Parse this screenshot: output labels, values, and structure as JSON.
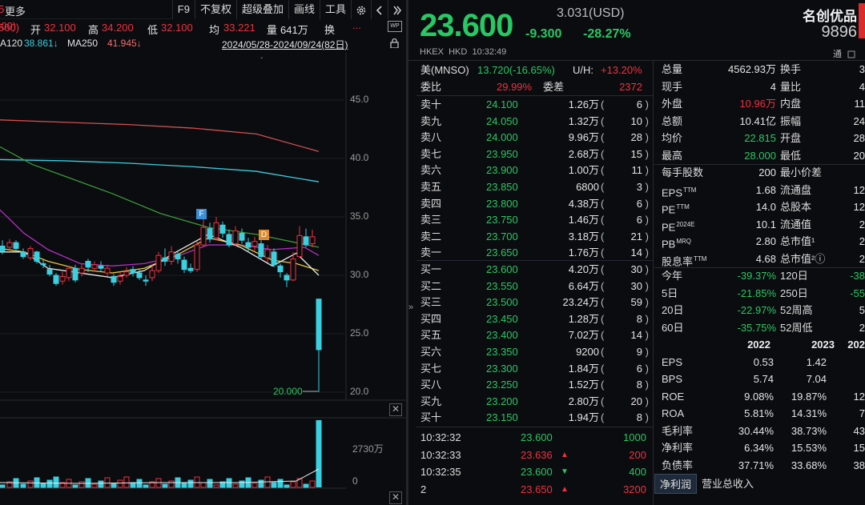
{
  "toolbar": {
    "more": "更多",
    "prev_close_fragment": "500)",
    "open_label": "开",
    "open_value": "32.100",
    "high_label": "高",
    "high_value": "34.200",
    "low_label": "低",
    "low_value": "32.100",
    "avg_label": "均",
    "avg_value": "33.221",
    "vol_label": "量",
    "vol_value": "641万",
    "turn_label": "换",
    "buttons": [
      "F9",
      "不复权",
      "超级叠加",
      "画线",
      "工具"
    ],
    "gear": "gear-icon",
    "collapse": "chevrons-right-icon",
    "ellipsis": "..."
  },
  "ma_bar": {
    "ma120_label": "A120",
    "ma120_value": "38.861↓",
    "ma250_label": "MA250",
    "ma250_value": "41.945↓",
    "range": "2024/05/28-2024/09/24(82日)"
  },
  "price_axis": [
    "45.0",
    "40.0",
    "35.0",
    "30.0",
    "25.0",
    "20.0"
  ],
  "min_price_label": "20.000",
  "vol_axis": [
    "2730万",
    "0"
  ],
  "markers": {
    "f": "F",
    "d": "D"
  },
  "quote": {
    "price": "23.600",
    "usd_price": "3.031(USD)",
    "change": "-9.300",
    "change_pct": "-28.27%",
    "name": "名创优品",
    "code": "9896",
    "market": "HKEX",
    "currency": "HKD",
    "time": "10:32:49",
    "tong": "通"
  },
  "adr": {
    "label": "美(MNSO)",
    "value": "13.720(-16.65%)",
    "uh_label": "U/H:",
    "uh_value": "+13.20%"
  },
  "weibi": {
    "label": "委比",
    "value": "29.99%",
    "weicha_label": "委差",
    "weicha_value": "2372"
  },
  "asks": [
    {
      "label": "卖十",
      "price": "24.100",
      "vol": "1.26万",
      "count": "6"
    },
    {
      "label": "卖九",
      "price": "24.050",
      "vol": "1.32万",
      "count": "10"
    },
    {
      "label": "卖八",
      "price": "24.000",
      "vol": "9.96万",
      "count": "28"
    },
    {
      "label": "卖七",
      "price": "23.950",
      "vol": "2.68万",
      "count": "15"
    },
    {
      "label": "卖六",
      "price": "23.900",
      "vol": "1.00万",
      "count": "11"
    },
    {
      "label": "卖五",
      "price": "23.850",
      "vol": "6800",
      "count": "3"
    },
    {
      "label": "卖四",
      "price": "23.800",
      "vol": "4.38万",
      "count": "6"
    },
    {
      "label": "卖三",
      "price": "23.750",
      "vol": "1.46万",
      "count": "6"
    },
    {
      "label": "卖二",
      "price": "23.700",
      "vol": "3.18万",
      "count": "21"
    },
    {
      "label": "卖一",
      "price": "23.650",
      "vol": "1.76万",
      "count": "14"
    }
  ],
  "bids": [
    {
      "label": "买一",
      "price": "23.600",
      "vol": "4.20万",
      "count": "30"
    },
    {
      "label": "买二",
      "price": "23.550",
      "vol": "6.64万",
      "count": "30"
    },
    {
      "label": "买三",
      "price": "23.500",
      "vol": "23.24万",
      "count": "59"
    },
    {
      "label": "买四",
      "price": "23.450",
      "vol": "1.28万",
      "count": "8"
    },
    {
      "label": "买五",
      "price": "23.400",
      "vol": "7.02万",
      "count": "14"
    },
    {
      "label": "买六",
      "price": "23.350",
      "vol": "9200",
      "count": "9"
    },
    {
      "label": "买七",
      "price": "23.300",
      "vol": "1.84万",
      "count": "6"
    },
    {
      "label": "买八",
      "price": "23.250",
      "vol": "1.52万",
      "count": "8"
    },
    {
      "label": "买九",
      "price": "23.200",
      "vol": "2.80万",
      "count": "20"
    },
    {
      "label": "买十",
      "price": "23.150",
      "vol": "1.94万",
      "count": "8"
    }
  ],
  "ticks": [
    {
      "time": "10:32:32",
      "price": "23.600",
      "arrow": "",
      "vol": "1000",
      "color": "#28c864"
    },
    {
      "time": "10:32:33",
      "price": "23.636",
      "arrow": "up",
      "vol": "200",
      "color": "#f0313f"
    },
    {
      "time": "10:32:35",
      "price": "23.600",
      "arrow": "down",
      "vol": "400",
      "color": "#28c864"
    },
    {
      "time": "2",
      "price": "23.650",
      "arrow": "up",
      "vol": "3200",
      "color": "#f0313f"
    }
  ],
  "stats": [
    {
      "l1": "总量",
      "v1": "4562.93万",
      "c1": "#e4e4e4",
      "l2": "换手",
      "v2": "3"
    },
    {
      "l1": "现手",
      "v1": "4",
      "c1": "#e4e4e4",
      "l2": "量比",
      "v2": "4"
    },
    {
      "l1": "外盘",
      "v1": "10.96万",
      "c1": "#f0313f",
      "l2": "内盘",
      "v2": "11"
    },
    {
      "l1": "总额",
      "v1": "10.41亿",
      "c1": "#e4e4e4",
      "l2": "振幅",
      "v2": "24"
    },
    {
      "l1": "均价",
      "v1": "22.815",
      "c1": "#28c864",
      "l2": "开盘",
      "v2": "28"
    },
    {
      "l1": "最高",
      "v1": "28.000",
      "c1": "#28c864",
      "l2": "最低",
      "v2": "20"
    },
    {
      "l1": "每手股数",
      "v1": "200",
      "c1": "#e4e4e4",
      "l2": "最小价差",
      "v2": ""
    },
    {
      "l1": "EPS",
      "sup1": "TTM",
      "v1": "1.68",
      "c1": "#e4e4e4",
      "l2": "流通盘",
      "v2": "12"
    },
    {
      "l1": "PE",
      "sup1": "TTM",
      "v1": "14.0",
      "c1": "#e4e4e4",
      "l2": "总股本",
      "v2": "12"
    },
    {
      "l1": "PE",
      "sup1": "2024E",
      "v1": "10.1",
      "c1": "#e4e4e4",
      "l2": "流通值",
      "v2": "2"
    },
    {
      "l1": "PB",
      "sup1": "MRQ",
      "v1": "2.80",
      "c1": "#e4e4e4",
      "l2": "总市值¹",
      "v2": "2"
    },
    {
      "l1": "股息率",
      "sup1": "TTM",
      "v1": "4.68",
      "c1": "#e4e4e4",
      "l2": "总市值²ⓘ",
      "v2": "2"
    },
    {
      "l1": "今年",
      "v1": "-39.37%",
      "c1": "#28c864",
      "l2": "120日",
      "v2": "-38"
    },
    {
      "l1": "5日",
      "v1": "-21.85%",
      "c1": "#28c864",
      "l2": "250日",
      "v2": "-55"
    },
    {
      "l1": "20日",
      "v1": "-22.97%",
      "c1": "#28c864",
      "l2": "52周高",
      "v2": "5"
    },
    {
      "l1": "60日",
      "v1": "-35.75%",
      "c1": "#28c864",
      "l2": "52周低",
      "v2": "2"
    }
  ],
  "fin_header": [
    "2022",
    "2023",
    "202"
  ],
  "fin_rows": [
    {
      "l": "EPS",
      "a": "0.53",
      "b": "1.42",
      "c": ""
    },
    {
      "l": "BPS",
      "a": "5.74",
      "b": "7.04",
      "c": ""
    },
    {
      "l": "ROE",
      "a": "9.08%",
      "b": "19.87%",
      "c": "12"
    },
    {
      "l": "ROA",
      "a": "5.81%",
      "b": "14.31%",
      "c": "7"
    },
    {
      "l": "毛利率",
      "a": "30.44%",
      "b": "38.73%",
      "c": "43"
    },
    {
      "l": "净利率",
      "a": "6.34%",
      "b": "15.53%",
      "c": "15"
    },
    {
      "l": "负债率",
      "a": "37.71%",
      "b": "33.68%",
      "c": "38"
    }
  ],
  "fin_tabs": [
    "净利润",
    "营业总收入"
  ]
}
